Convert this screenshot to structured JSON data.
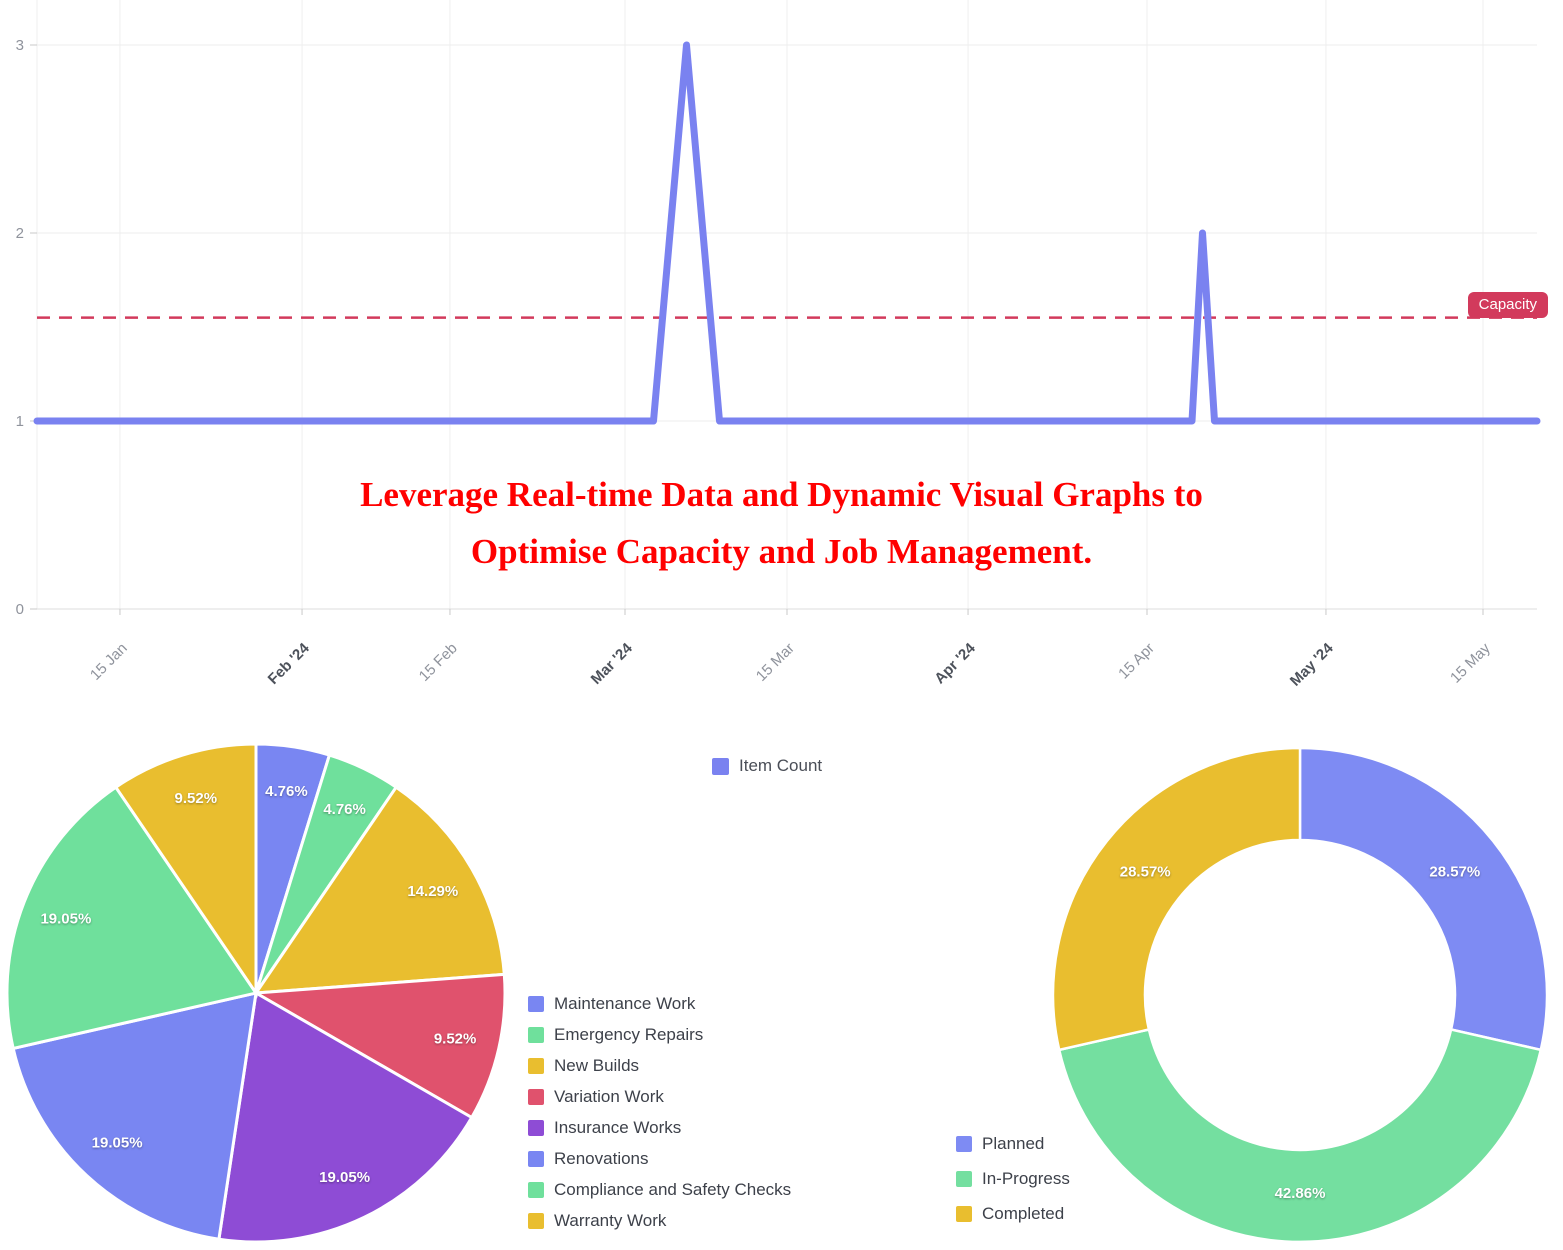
{
  "annotation": {
    "line1": "Leverage Real-time Data and Dynamic Visual Graphs to",
    "line2": "Optimise Capacity and Job Management.",
    "color": "#ff0000"
  },
  "chart_data": [
    {
      "type": "line",
      "title": "",
      "xlabel": "",
      "ylabel": "",
      "ylim": [
        0,
        3.24
      ],
      "grid": true,
      "legend": {
        "label": "Item Count",
        "position": "bottom-center"
      },
      "series_color": "#7a82f0",
      "y_ticks": [
        0,
        1,
        2,
        3
      ],
      "x_ticks": [
        {
          "label": "15 Jan",
          "f": 0.0553,
          "emphasis": false
        },
        {
          "label": "Feb '24",
          "f": 0.1767,
          "emphasis": true
        },
        {
          "label": "15 Feb",
          "f": 0.2753,
          "emphasis": false
        },
        {
          "label": "Mar '24",
          "f": 0.392,
          "emphasis": true
        },
        {
          "label": "15 Mar",
          "f": 0.5,
          "emphasis": false
        },
        {
          "label": "Apr '24",
          "f": 0.6207,
          "emphasis": true
        },
        {
          "label": "15 Apr",
          "f": 0.74,
          "emphasis": false
        },
        {
          "label": "May '24",
          "f": 0.8593,
          "emphasis": true
        },
        {
          "label": "15 May",
          "f": 0.964,
          "emphasis": false
        }
      ],
      "points": [
        [
          0.0,
          1
        ],
        [
          0.411,
          1
        ],
        [
          0.433,
          3
        ],
        [
          0.455,
          1
        ],
        [
          0.77,
          1
        ],
        [
          0.777,
          2
        ],
        [
          0.785,
          1
        ],
        [
          1.0,
          1
        ]
      ],
      "capacity": {
        "label": "Capacity",
        "value": 1.55,
        "color": "#d23a5c"
      }
    },
    {
      "type": "pie",
      "title": "",
      "legend_position": "right",
      "slices": [
        {
          "label": "Maintenance Work",
          "value": 4.76,
          "display": "4.76%",
          "color": "#7986f2"
        },
        {
          "label": "Emergency Repairs",
          "value": 4.76,
          "display": "4.76%",
          "color": "#6fe09c"
        },
        {
          "label": "New Builds",
          "value": 14.29,
          "display": "14.29%",
          "color": "#e9be2f"
        },
        {
          "label": "Variation Work",
          "value": 9.52,
          "display": "9.52%",
          "color": "#e0526d"
        },
        {
          "label": "Insurance Works",
          "value": 19.05,
          "display": "19.05%",
          "color": "#8e4cd5"
        },
        {
          "label": "Renovations",
          "value": 19.05,
          "display": "19.05%",
          "color": "#7986f2"
        },
        {
          "label": "Compliance and Safety Checks",
          "value": 19.05,
          "display": "19.05%",
          "color": "#6fe09c"
        },
        {
          "label": "Warranty Work",
          "value": 9.52,
          "display": "9.52%",
          "color": "#e9be2f"
        }
      ]
    },
    {
      "type": "donut",
      "title": "",
      "legend_position": "left",
      "slices": [
        {
          "label": "Planned",
          "value": 28.57,
          "display": "28.57%",
          "color": "#7e8bf3"
        },
        {
          "label": "In-Progress",
          "value": 42.86,
          "display": "42.86%",
          "color": "#74dfa0"
        },
        {
          "label": "Completed",
          "value": 28.57,
          "display": "28.57%",
          "color": "#e9be2f"
        }
      ]
    }
  ]
}
